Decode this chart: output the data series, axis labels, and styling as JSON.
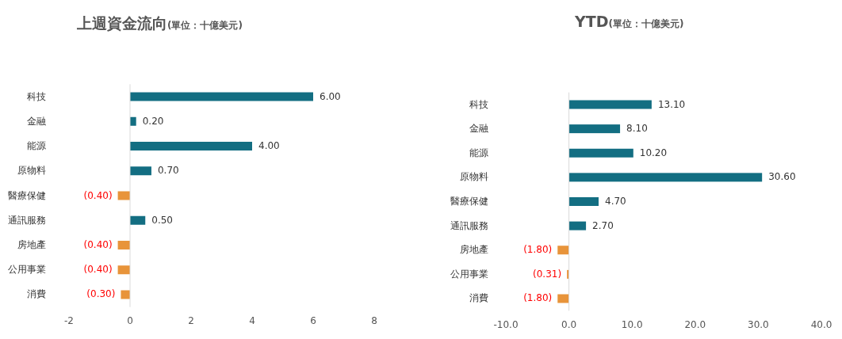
{
  "chart_data": [
    {
      "type": "bar",
      "orientation": "horizontal",
      "title": "上週資金流向",
      "subtitle": "(單位：十億美元)",
      "categories": [
        "科技",
        "金融",
        "能源",
        "原物料",
        "醫療保健",
        "通訊服務",
        "房地產",
        "公用事業",
        "消費"
      ],
      "values": [
        6.0,
        0.2,
        4.0,
        0.7,
        -0.4,
        0.5,
        -0.4,
        -0.4,
        -0.3
      ],
      "colors": [
        "#136e82",
        "#136e82",
        "#136e82",
        "#136e82",
        "#e8943a",
        "#136e82",
        "#e8943a",
        "#e8943a",
        "#e8943a"
      ],
      "value_labels": [
        "6.00",
        "0.20",
        "4.00",
        "0.70",
        "(0.40)",
        "0.50",
        "(0.40)",
        "(0.40)",
        "(0.30)"
      ],
      "xlim": [
        -2,
        8
      ],
      "xticks": [
        -2,
        0,
        2,
        4,
        6,
        8
      ]
    },
    {
      "type": "bar",
      "orientation": "horizontal",
      "title": "YTD",
      "subtitle": "(單位：十億美元)",
      "categories": [
        "科技",
        "金融",
        "能源",
        "原物料",
        "醫療保健",
        "通訊服務",
        "房地產",
        "公用事業",
        "消費"
      ],
      "values": [
        13.1,
        8.1,
        10.2,
        30.6,
        4.7,
        2.7,
        -1.8,
        -0.31,
        -1.8
      ],
      "colors": [
        "#136e82",
        "#136e82",
        "#136e82",
        "#136e82",
        "#136e82",
        "#136e82",
        "#e8943a",
        "#e8943a",
        "#e8943a"
      ],
      "value_labels": [
        "13.10",
        "8.10",
        "10.20",
        "30.60",
        "4.70",
        "2.70",
        "(1.80)",
        "(0.31)",
        "(1.80)"
      ],
      "xlim": [
        -10,
        40
      ],
      "xticks": [
        {
          "value": -10,
          "label": "-10.0"
        },
        {
          "value": 0,
          "label": "0.0"
        },
        {
          "value": 10,
          "label": "10.0"
        },
        {
          "value": 20,
          "label": "20.0"
        },
        {
          "value": 30,
          "label": "30.0"
        },
        {
          "value": 40,
          "label": "40.0"
        }
      ]
    }
  ]
}
